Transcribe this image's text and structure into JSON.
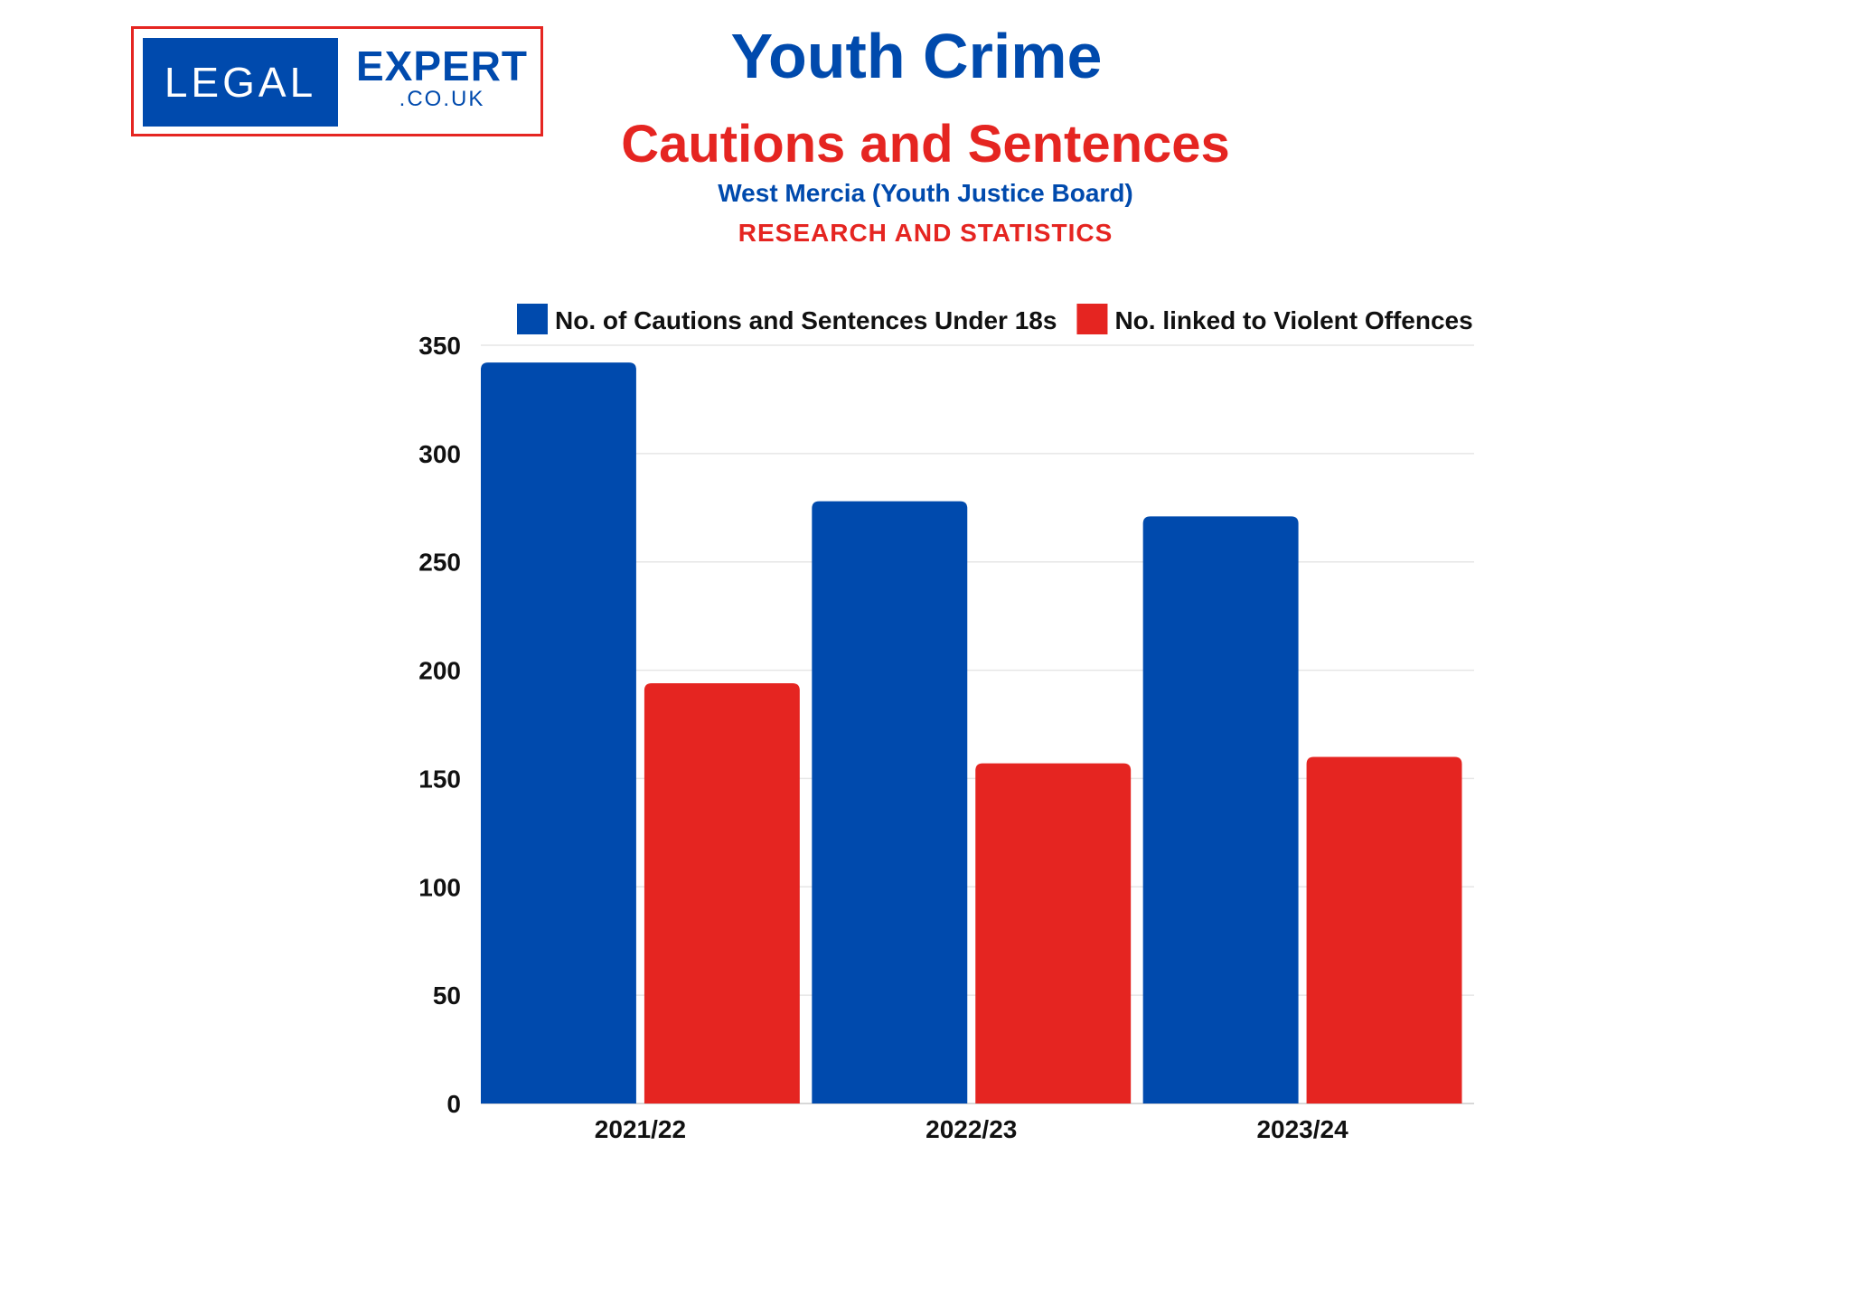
{
  "logo": {
    "left": "LEGAL",
    "right": "EXPERT",
    "suffix": ".CO.UK"
  },
  "header": {
    "title": "Youth Crime",
    "subtitle": "Cautions and Sentences",
    "region": "West Mercia (Youth Justice Board)",
    "tagline": "RESEARCH AND STATISTICS"
  },
  "colors": {
    "blue": "#004aad",
    "red": "#e52521",
    "grid": "#e6e6e6"
  },
  "chart_data": {
    "type": "bar",
    "title": "Youth Crime - Cautions and Sentences",
    "xlabel": "",
    "ylabel": "",
    "categories": [
      "2021/22",
      "2022/23",
      "2023/24"
    ],
    "series": [
      {
        "name": "No. of Cautions and Sentences Under 18s",
        "values": [
          342,
          278,
          271
        ],
        "color": "#004aad"
      },
      {
        "name": "No. linked to Violent Offences",
        "values": [
          194,
          157,
          160
        ],
        "color": "#e52521"
      }
    ],
    "ylim": [
      0,
      350
    ],
    "yticks": [
      0,
      50,
      100,
      150,
      200,
      250,
      300,
      350
    ],
    "grid": true,
    "legend": "top"
  }
}
